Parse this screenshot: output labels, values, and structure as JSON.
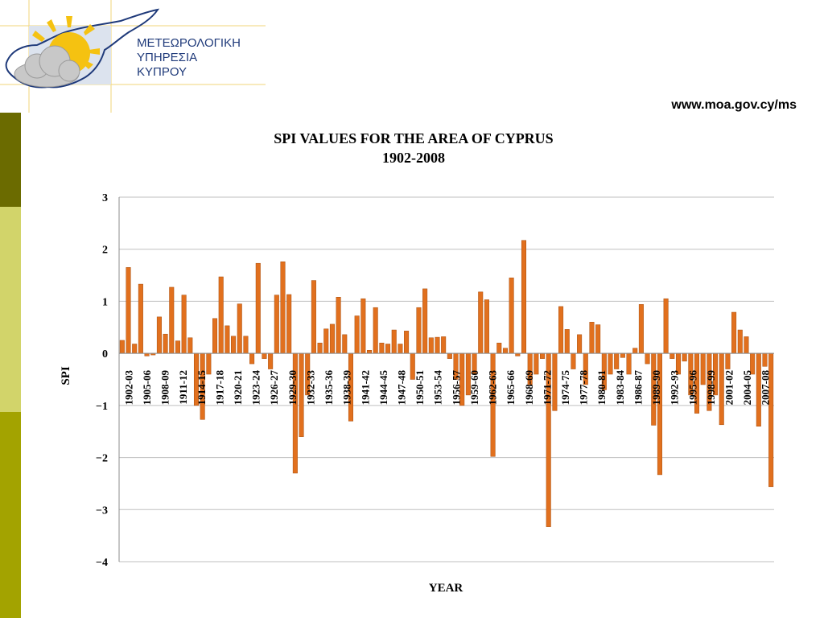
{
  "header": {
    "org_lines": [
      "ΜΕΤΕΩΡΟΛΟΓΙΚΗ",
      "ΥΠΗΡΕΣΙΑ",
      "ΚΥΠΡΟΥ"
    ],
    "url": "www.moa.gov.cy/ms"
  },
  "colors": {
    "bar_fill": "#E1701E",
    "bar_stroke": "#A84E0E",
    "sidebar": [
      "#6B6B00",
      "#D2D46A",
      "#A3A300"
    ],
    "gridline": "#BFBFBF",
    "logo_sun": "#F5C211",
    "logo_line": "#1F3A7A"
  },
  "chart_data": {
    "type": "bar",
    "title": "SPI VALUES FOR THE AREA OF CYPRUS",
    "subtitle": "1902-2008",
    "xlabel": "YEAR",
    "ylabel": "SPI",
    "ylim": [
      -4,
      3
    ],
    "yticks": [
      3,
      2,
      1,
      0,
      -1,
      -2,
      -3,
      -4
    ],
    "grid": true,
    "x_tick_labels": [
      "1902-03",
      "1905-06",
      "1908-09",
      "1911-12",
      "1914-15",
      "1917-18",
      "1920-21",
      "1923-24",
      "1926-27",
      "1929-30",
      "1932-33",
      "1935-36",
      "1938-39",
      "1941-42",
      "1944-45",
      "1947-48",
      "1950-51",
      "1953-54",
      "1956-57",
      "1959-60",
      "1962-63",
      "1965-66",
      "1968-69",
      "1971-72",
      "1974-75",
      "1977-78",
      "1980-81",
      "1983-84",
      "1986-87",
      "1989-90",
      "1992-93",
      "1995-96",
      "1998-99",
      "2001-02",
      "2004-05",
      "2007-08"
    ],
    "values": [
      0.25,
      1.65,
      0.18,
      1.33,
      -0.05,
      -0.03,
      0.7,
      0.37,
      1.27,
      0.24,
      1.12,
      0.3,
      -1.0,
      -1.27,
      -0.4,
      0.67,
      1.47,
      0.53,
      0.33,
      0.95,
      0.33,
      -0.2,
      1.73,
      -0.1,
      -0.3,
      1.12,
      1.76,
      1.13,
      -2.3,
      -1.6,
      -0.8,
      1.4,
      0.2,
      0.47,
      0.56,
      1.08,
      0.36,
      -1.3,
      0.72,
      1.05,
      0.06,
      0.88,
      0.2,
      0.18,
      0.45,
      0.18,
      0.43,
      -0.5,
      0.88,
      1.24,
      0.3,
      0.31,
      0.32,
      -0.1,
      -0.5,
      -1.0,
      -0.8,
      -0.4,
      1.18,
      1.03,
      -1.98,
      0.2,
      0.1,
      1.45,
      -0.05,
      2.17,
      -0.6,
      -0.4,
      -0.1,
      -3.33,
      -1.1,
      0.9,
      0.46,
      -0.3,
      0.36,
      -0.6,
      0.6,
      0.55,
      -0.7,
      -0.4,
      -0.3,
      -0.08,
      -0.4,
      0.1,
      0.94,
      -0.2,
      -1.38,
      -2.33,
      1.05,
      -0.1,
      -0.4,
      -0.15,
      -0.8,
      -1.15,
      -0.6,
      -1.1,
      -0.8,
      -1.37,
      -0.3,
      0.79,
      0.45,
      0.32,
      -0.4,
      -1.4,
      -0.25,
      -2.56
    ]
  }
}
